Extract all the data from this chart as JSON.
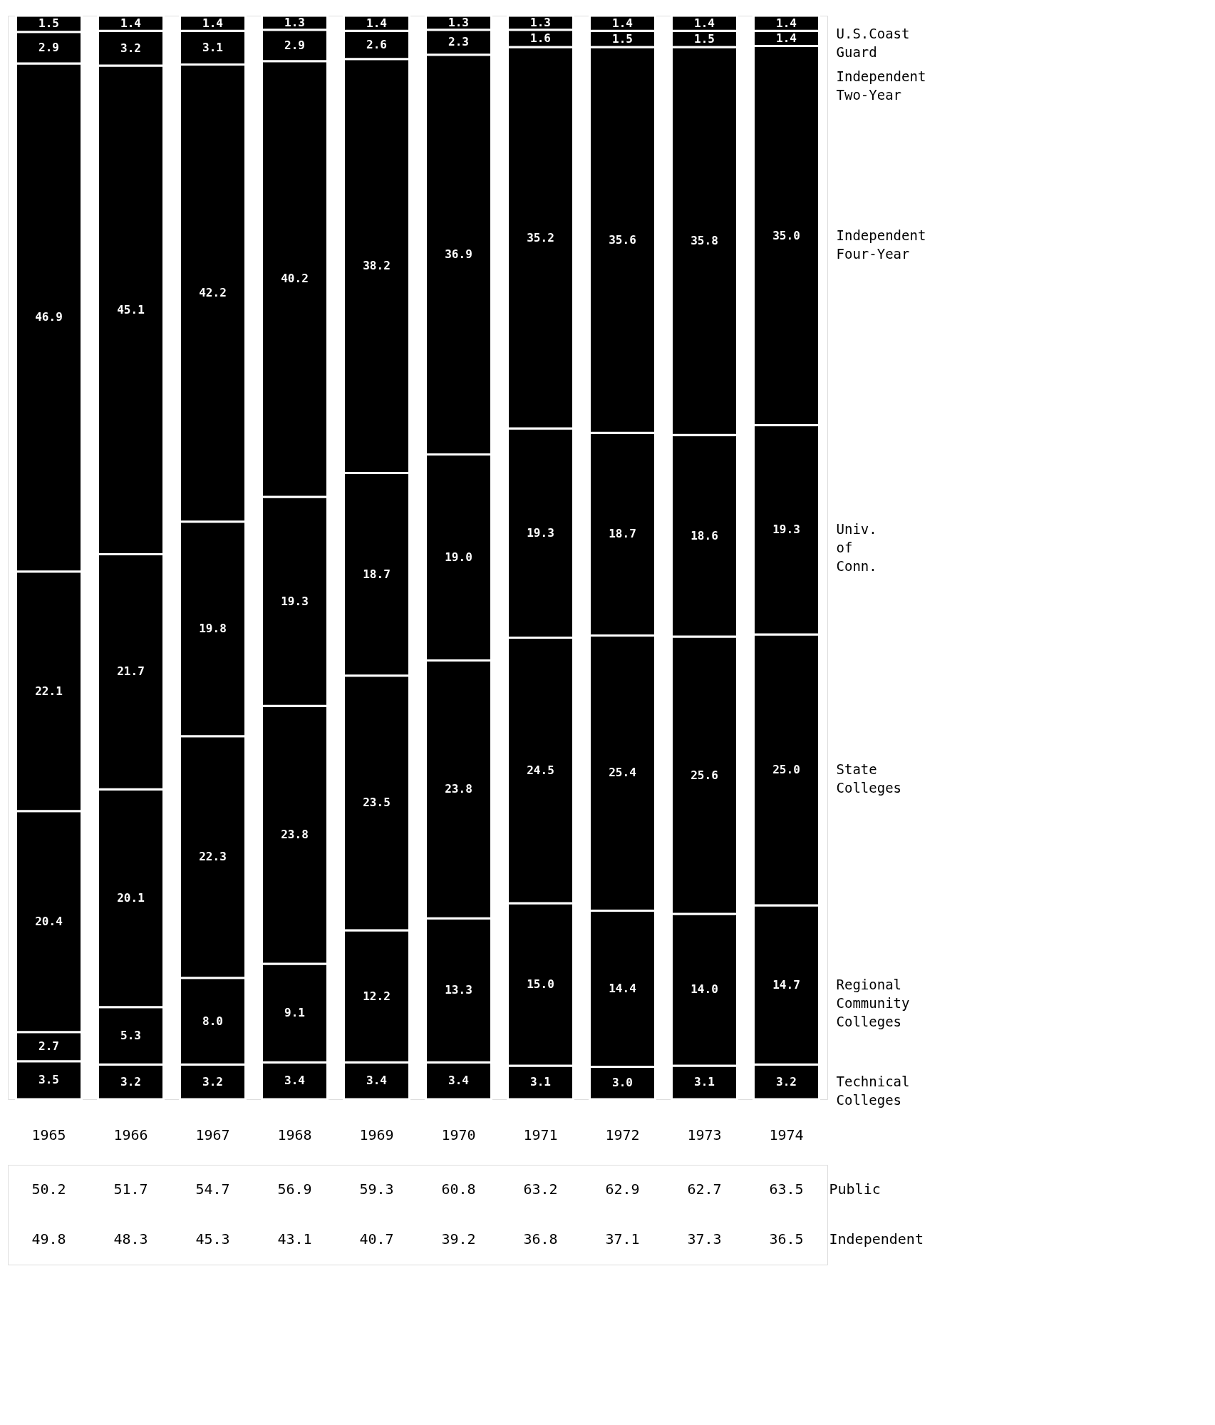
{
  "chart_data": [
    {
      "type": "bar",
      "stacked": true,
      "categories": [
        "1965",
        "1966",
        "1967",
        "1968",
        "1969",
        "1970",
        "1971",
        "1972",
        "1973",
        "1974"
      ],
      "series": [
        {
          "name": "Technical Colleges",
          "color": "#000000",
          "values": [
            3.5,
            3.2,
            3.2,
            3.4,
            3.4,
            3.4,
            3.1,
            3.0,
            3.1,
            3.2
          ],
          "value_labels": [
            "3.5",
            "3.2",
            "3.2",
            "3.4",
            "3.4",
            "3.4",
            "3.1",
            "3.0",
            "3.1",
            "3.2"
          ]
        },
        {
          "name": "Regional Community Colleges",
          "color": "#000000",
          "values": [
            2.7,
            5.3,
            8.0,
            9.1,
            12.2,
            13.3,
            15.0,
            14.4,
            14.0,
            14.7
          ],
          "value_labels": [
            "2.7",
            "5.3",
            "8.0",
            "9.1",
            "12.2",
            "13.3",
            "15.0",
            "14.4",
            "14.0",
            "14.7"
          ]
        },
        {
          "name": "State Colleges",
          "color": "#000000",
          "values": [
            20.4,
            20.1,
            22.3,
            23.8,
            23.5,
            23.8,
            24.5,
            25.4,
            25.6,
            25.0
          ],
          "value_labels": [
            "20.4",
            "20.1",
            "22.3",
            "23.8",
            "23.5",
            "23.8",
            "24.5",
            "25.4",
            "25.6",
            "25.0"
          ]
        },
        {
          "name": "Univ. of Conn.",
          "color": "#000000",
          "values": [
            22.1,
            21.7,
            19.8,
            19.3,
            18.7,
            19.0,
            19.3,
            18.7,
            18.6,
            19.3
          ],
          "value_labels": [
            "22.1",
            "21.7",
            "19.8",
            "19.3",
            "18.7",
            "19.0",
            "19.3",
            "18.7",
            "18.6",
            "19.3"
          ]
        },
        {
          "name": "Independent Four-Year",
          "color": "#000000",
          "values": [
            46.9,
            45.1,
            42.2,
            40.2,
            38.2,
            36.9,
            35.2,
            35.6,
            35.8,
            35.0
          ],
          "value_labels": [
            "46.9",
            "45.1",
            "42.2",
            "40.2",
            "38.2",
            "36.9",
            "35.2",
            "35.6",
            "35.8",
            "35.0"
          ]
        },
        {
          "name": "Independent Two-Year",
          "color": "#000000",
          "values": [
            2.9,
            3.2,
            3.1,
            2.9,
            2.6,
            2.3,
            1.6,
            1.5,
            1.5,
            1.4
          ],
          "value_labels": [
            "2.9",
            "3.2",
            "3.1",
            "2.9",
            "2.6",
            "2.3",
            "1.6",
            "1.5",
            "1.5",
            "1.4"
          ]
        },
        {
          "name": "U.S.Coast Guard",
          "color": "#000000",
          "values": [
            1.5,
            1.4,
            1.4,
            1.3,
            1.4,
            1.3,
            1.3,
            1.4,
            1.4,
            1.4
          ],
          "value_labels": [
            "1.5",
            "1.4",
            "1.4",
            "1.3",
            "1.4",
            "1.3",
            "1.3",
            "1.4",
            "1.4",
            "1.4"
          ]
        }
      ]
    },
    {
      "type": "other",
      "annotations": [
        "50.2",
        "51.7",
        "54.7",
        "56.9",
        "59.3",
        "60.8",
        "63.2",
        "62.9",
        "62.7",
        "63.5",
        "Public",
        "49.8",
        "48.3",
        "45.3",
        "43.1",
        "40.7",
        "39.2",
        "36.8",
        "37.1",
        "37.3",
        "36.5",
        "Independent"
      ]
    }
  ]
}
